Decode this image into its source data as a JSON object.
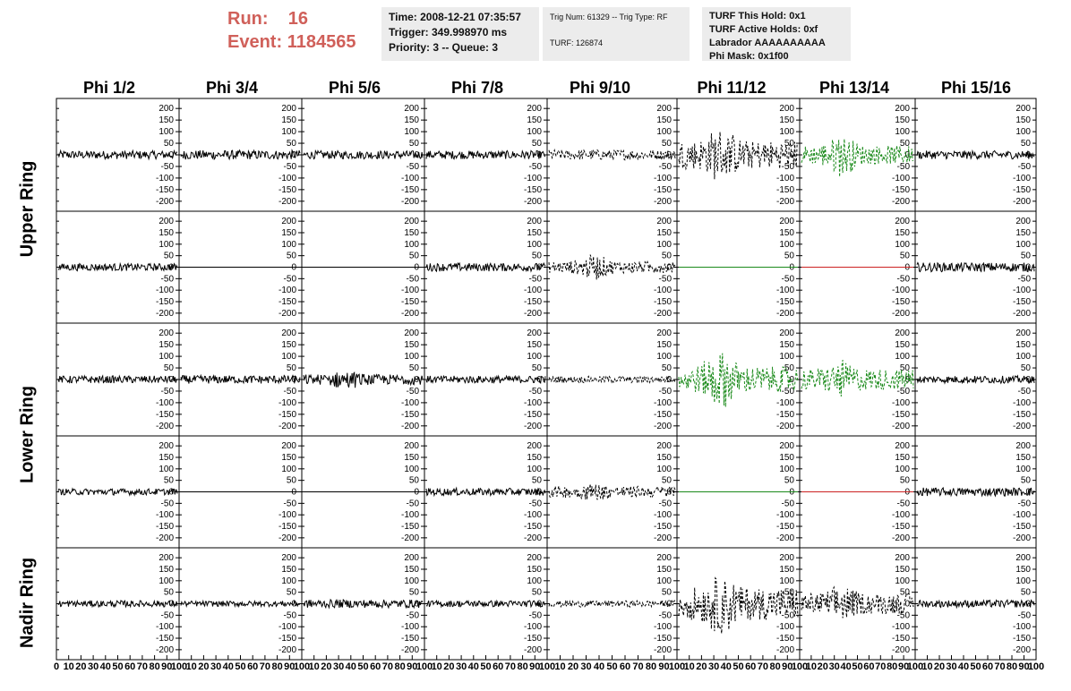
{
  "header": {
    "run_label": "Run:",
    "run_value": "16",
    "event_label": "Event:",
    "event_value": "1184565",
    "time": "Time: 2008-12-21 07:35:57",
    "trigger": "Trigger: 349.998970 ms",
    "priority": "Priority: 3 -- Queue: 3",
    "trig_num": "Trig Num: 61329 -- Trig Type: RF",
    "turf": "TURF: 126874",
    "turf_hold": "TURF This Hold: 0x1",
    "turf_active": "TURF Active Holds: 0xf",
    "labrador": "Labrador AAAAAAAAAA",
    "phi_mask": "Phi Mask: 0x1f00"
  },
  "columns": [
    "Phi 1/2",
    "Phi 3/4",
    "Phi 5/6",
    "Phi 7/8",
    "Phi 9/10",
    "Phi 11/12",
    "Phi 13/14",
    "Phi 15/16"
  ],
  "rows": [
    "Upper Ring",
    "Lower Ring",
    "Nadir Ring"
  ],
  "y_ticks": [
    "200",
    "150",
    "100",
    "50",
    "0",
    "-50",
    "-100",
    "-150",
    "-200"
  ],
  "x_ticks": [
    "0",
    "10",
    "20",
    "30",
    "40",
    "50",
    "60",
    "70",
    "80",
    "90",
    "100"
  ],
  "colors": {
    "run_text": "#d0605a",
    "trace": "#000000",
    "trace_green": "#1a8a1a",
    "trace_red": "#cc2222",
    "header_bg": "#ececec"
  },
  "panels": [
    [
      {
        "style": "solid",
        "amp": 18,
        "color": "black"
      },
      {
        "style": "solid",
        "amp": 20,
        "color": "black"
      },
      {
        "style": "solid",
        "amp": 18,
        "color": "black"
      },
      {
        "style": "solid",
        "amp": 18,
        "color": "black"
      },
      {
        "style": "dashed",
        "amp": 22,
        "color": "black"
      },
      {
        "style": "dashed",
        "amp": 60,
        "burst": 130,
        "color": "black"
      },
      {
        "style": "dashed",
        "amp": 40,
        "burst": 110,
        "color": "green"
      },
      {
        "style": "solid",
        "amp": 18,
        "color": "black"
      }
    ],
    [
      {
        "style": "solid",
        "amp": 16,
        "color": "black"
      },
      {
        "style": "flat",
        "color": "black"
      },
      {
        "style": "flat",
        "color": "black"
      },
      {
        "style": "solid",
        "amp": 18,
        "color": "black"
      },
      {
        "style": "dashed",
        "amp": 25,
        "burst": 60,
        "color": "black"
      },
      {
        "style": "flat",
        "color": "green"
      },
      {
        "style": "flat",
        "color": "red"
      },
      {
        "style": "solid",
        "amp": 20,
        "color": "black"
      }
    ],
    [
      {
        "style": "solid",
        "amp": 16,
        "color": "black"
      },
      {
        "style": "solid",
        "amp": 18,
        "color": "black"
      },
      {
        "style": "solid",
        "amp": 22,
        "burst": 45,
        "color": "black"
      },
      {
        "style": "solid",
        "amp": 16,
        "color": "black"
      },
      {
        "style": "dashed",
        "amp": 14,
        "color": "black"
      },
      {
        "style": "dashed",
        "amp": 55,
        "burst": 150,
        "color": "green"
      },
      {
        "style": "dashed",
        "amp": 45,
        "burst": 90,
        "color": "green"
      },
      {
        "style": "solid",
        "amp": 16,
        "color": "black"
      }
    ],
    [
      {
        "style": "solid",
        "amp": 14,
        "color": "black"
      },
      {
        "style": "flat",
        "color": "black"
      },
      {
        "style": "flat",
        "color": "black"
      },
      {
        "style": "solid",
        "amp": 16,
        "color": "black"
      },
      {
        "style": "dashed",
        "amp": 25,
        "burst": 45,
        "color": "black"
      },
      {
        "style": "flat",
        "color": "green"
      },
      {
        "style": "flat",
        "color": "red"
      },
      {
        "style": "solid",
        "amp": 18,
        "color": "black"
      }
    ],
    [
      {
        "style": "solid",
        "amp": 14,
        "color": "black"
      },
      {
        "style": "solid",
        "amp": 12,
        "color": "black"
      },
      {
        "style": "solid",
        "amp": 18,
        "color": "black"
      },
      {
        "style": "solid",
        "amp": 14,
        "color": "black"
      },
      {
        "style": "dashed",
        "amp": 14,
        "color": "black"
      },
      {
        "style": "dashed",
        "amp": 70,
        "burst": 150,
        "color": "black"
      },
      {
        "style": "dashed",
        "amp": 45,
        "burst": 90,
        "color": "black"
      },
      {
        "style": "solid",
        "amp": 16,
        "color": "black"
      }
    ]
  ]
}
